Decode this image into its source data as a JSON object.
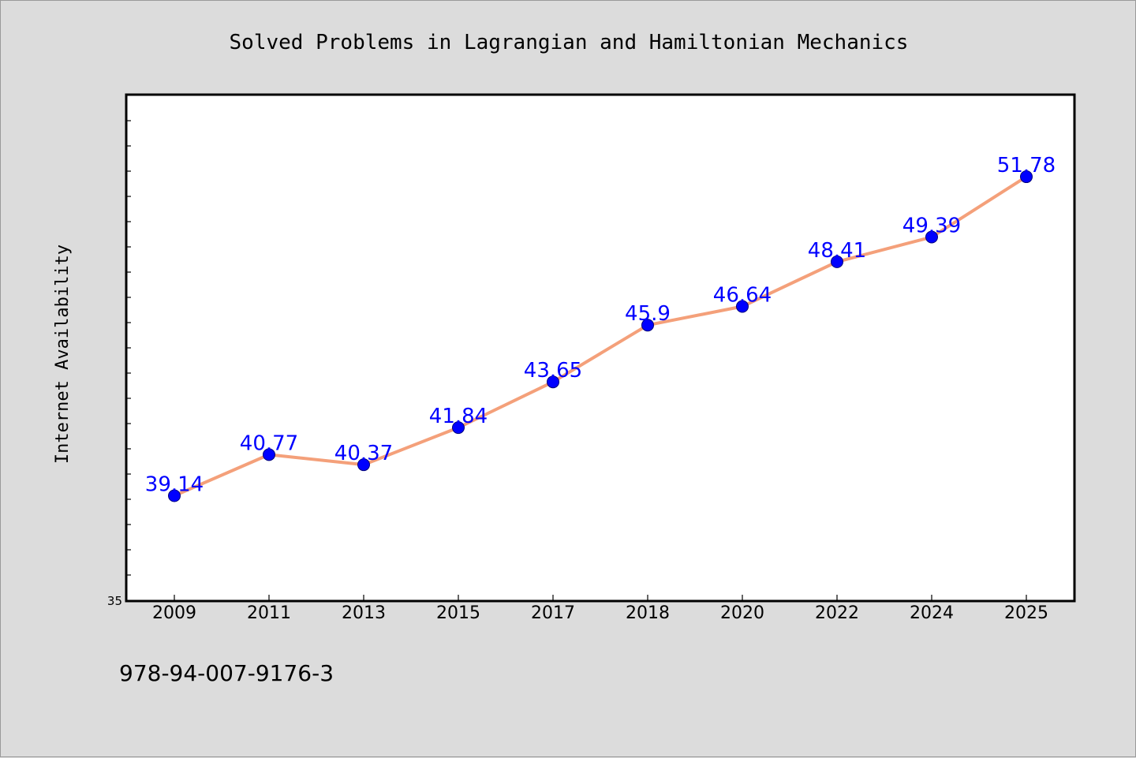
{
  "chart_data": {
    "type": "line",
    "title": "Solved Problems in Lagrangian and Hamiltonian Mechanics",
    "ylabel": "Internet Availability",
    "xlabel": "",
    "categories": [
      "2009",
      "2011",
      "2013",
      "2015",
      "2017",
      "2018",
      "2020",
      "2022",
      "2024",
      "2025"
    ],
    "series": [
      {
        "values": [
          39.14,
          40.77,
          40.37,
          41.84,
          43.65,
          45.9,
          46.64,
          48.41,
          49.39,
          51.78
        ],
        "labels": [
          "39.14",
          "40.77",
          "40.37",
          "41.84",
          "43.65",
          "45.9",
          "46.64",
          "48.41",
          "49.39",
          "51.78"
        ],
        "line_color": "#f4a07a",
        "marker_color": "#0000ff"
      }
    ],
    "yticks": [
      {
        "value": 35,
        "label": "35"
      }
    ],
    "ylim": [
      35,
      55
    ],
    "grid": false,
    "legend": "none"
  },
  "footer": {
    "isbn": "978-94-007-9176-3"
  },
  "colors": {
    "background": "#dcdcdc",
    "plot_background": "#ffffff",
    "data_label": "#0000ff"
  }
}
